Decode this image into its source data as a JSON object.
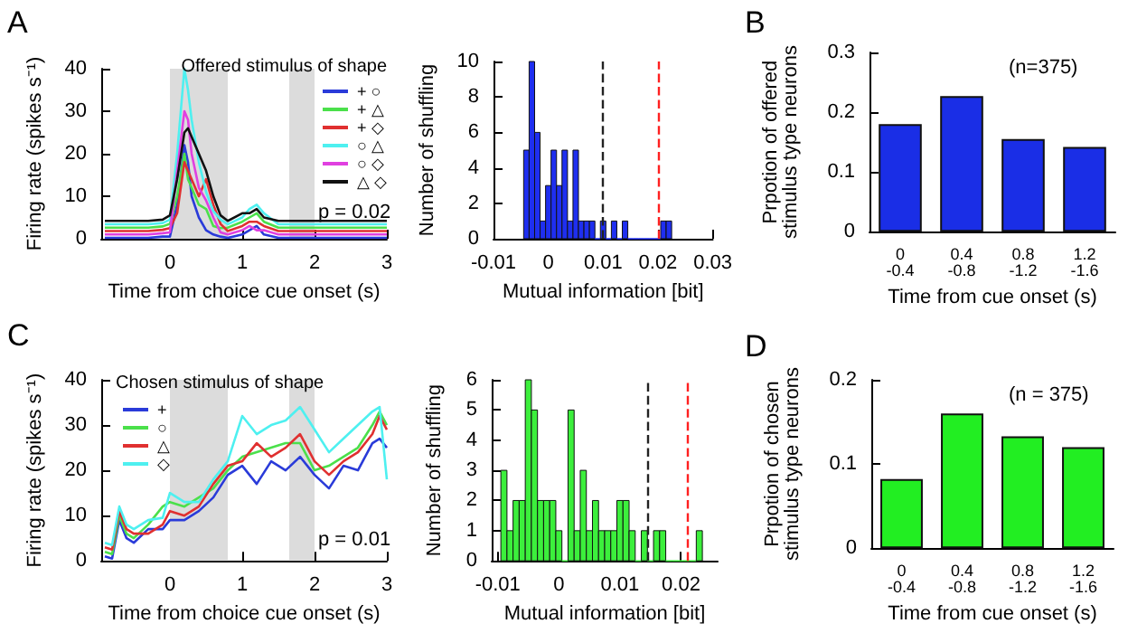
{
  "chart_data": [
    {
      "type": "line",
      "xlabel": "Time from choice cue onset (s)",
      "ylabel": "Firing rate (spikes s⁻¹)",
      "legend_title": "Offered stimulus of shape",
      "legend": "top right",
      "annotations": [
        "A",
        "p = 0.02"
      ],
      "xlim": [
        -0.95,
        3
      ],
      "xticks": [
        0,
        1,
        2,
        3
      ],
      "ylim": [
        0,
        40
      ],
      "yticks": [
        0,
        10,
        20,
        30,
        40
      ],
      "bands": [
        {
          "axis": "x",
          "from": 0,
          "to": 0.8,
          "color": "#dcdcdc"
        },
        {
          "axis": "x",
          "from": 1.65,
          "to": 2.0,
          "color": "#dcdcdc"
        }
      ],
      "x": [
        -0.9,
        -0.6,
        -0.3,
        -0.1,
        0,
        0.1,
        0.2,
        0.25,
        0.3,
        0.4,
        0.5,
        0.6,
        0.7,
        0.8,
        1.0,
        1.1,
        1.2,
        1.3,
        1.5,
        1.8,
        2.2,
        2.6,
        3.0
      ],
      "series": [
        {
          "name": "+ ○",
          "color": "#2a3bd9",
          "values": [
            0.2,
            0.2,
            0.2,
            0.5,
            0.5,
            8,
            22,
            18,
            10,
            5,
            2,
            1,
            0.5,
            0.2,
            1,
            2,
            3,
            1,
            0.2,
            0.2,
            0.2,
            0.2,
            0.2
          ]
        },
        {
          "name": "+ △",
          "color": "#4be04b",
          "values": [
            2.6,
            2.6,
            2.6,
            2.9,
            3.5,
            10,
            20,
            14,
            12,
            8,
            7,
            3,
            2.5,
            2.6,
            4,
            5,
            6,
            4,
            2.6,
            2.6,
            2.6,
            2.6,
            2.6
          ]
        },
        {
          "name": "+ ◇",
          "color": "#e03030",
          "values": [
            1.8,
            1.8,
            1.8,
            2.1,
            2.5,
            6,
            18,
            16,
            14,
            10,
            14,
            8,
            3.5,
            1.8,
            3,
            4,
            4,
            3,
            1.8,
            1.8,
            1.8,
            1.8,
            1.8
          ]
        },
        {
          "name": "○ △",
          "color": "#4ef0f0",
          "values": [
            3.4,
            3.4,
            3.4,
            3.7,
            4.5,
            20,
            40,
            35,
            28,
            18,
            11,
            6.5,
            4.5,
            3.4,
            5,
            7,
            8,
            6,
            3.4,
            3.4,
            3.4,
            3.4,
            3.4
          ]
        },
        {
          "name": "○ ◇",
          "color": "#e040e0",
          "values": [
            1,
            1,
            1,
            1.3,
            1.5,
            16,
            30,
            28,
            20,
            12,
            9,
            5,
            1.5,
            1,
            2,
            3,
            2,
            2,
            1,
            1,
            1,
            1,
            1
          ]
        },
        {
          "name": "△ ◇",
          "color": "#111111",
          "values": [
            4.2,
            4.2,
            4.2,
            4.5,
            5.5,
            14,
            25,
            26,
            24,
            20,
            16,
            10,
            5.5,
            4.2,
            6,
            6,
            7,
            5,
            4.2,
            4.2,
            4.2,
            4.2,
            4.2
          ]
        }
      ]
    },
    {
      "type": "histogram",
      "xlabel": "Mutual information [bit]",
      "ylabel": "Number of shuffling",
      "color": "#1f2ff0",
      "xlim": [
        -0.01,
        0.03
      ],
      "xticks": [
        -0.01,
        0,
        0.01,
        0.02,
        0.03
      ],
      "ylim": [
        0,
        10
      ],
      "yticks": [
        0,
        2,
        4,
        6,
        8,
        10
      ],
      "bins": [
        -0.0045,
        -0.0035,
        -0.0025,
        -0.0015,
        -0.0005,
        0.0005,
        0.0015,
        0.0025,
        0.0035,
        0.0045,
        0.0055,
        0.0065,
        0.0075,
        0.0085,
        0.0095,
        0.0105,
        0.0115,
        0.0125,
        0.0135,
        0.0145,
        0.0155,
        0.0165,
        0.0175,
        0.0185,
        0.0195,
        0.0205,
        0.0215,
        0.0225
      ],
      "values": [
        5,
        10,
        6,
        1,
        3,
        5,
        3,
        5,
        1,
        5,
        1,
        1,
        1,
        0,
        1,
        0,
        1,
        0,
        1,
        0,
        0,
        0,
        0,
        0,
        0,
        1,
        1
      ],
      "ref_lines": [
        {
          "axis": "x",
          "value": 0.01,
          "color": "#222222",
          "line_style": "dashed"
        },
        {
          "axis": "x",
          "value": 0.02,
          "color": "#ff2020",
          "line_style": "dashed"
        }
      ]
    },
    {
      "type": "bar",
      "xlabel": "Time from cue onset (s)",
      "ylabel": "Prpotion of offered\nstimulus type neurons",
      "annotations": [
        "B",
        "(n=375)"
      ],
      "color": "#1a2ee6",
      "categories": [
        "0\n-0.4",
        "0.4\n-0.8",
        "0.8\n-1.2",
        "1.2\n-1.6"
      ],
      "values": [
        0.18,
        0.227,
        0.155,
        0.142
      ],
      "ylim": [
        0,
        0.3
      ],
      "yticks": [
        0,
        0.1,
        0.2,
        0.3
      ]
    },
    {
      "type": "line",
      "xlabel": "Time from choice cue onset (s)",
      "ylabel": "Firing rate (spikes s⁻¹)",
      "legend_title": "Chosen stimulus of shape",
      "legend": "top left",
      "annotations": [
        "C",
        "p = 0.01"
      ],
      "xlim": [
        -0.95,
        3
      ],
      "xticks": [
        0,
        1,
        2,
        3
      ],
      "ylim": [
        0,
        40
      ],
      "yticks": [
        0,
        10,
        20,
        30,
        40
      ],
      "bands": [
        {
          "axis": "x",
          "from": 0,
          "to": 0.8,
          "color": "#dcdcdc"
        },
        {
          "axis": "x",
          "from": 1.65,
          "to": 2.0,
          "color": "#dcdcdc"
        }
      ],
      "x": [
        -0.9,
        -0.8,
        -0.7,
        -0.6,
        -0.5,
        -0.3,
        -0.1,
        0,
        0.2,
        0.4,
        0.6,
        0.8,
        1.0,
        1.2,
        1.4,
        1.6,
        1.8,
        2.0,
        2.2,
        2.4,
        2.6,
        2.8,
        2.9,
        3.0
      ],
      "series": [
        {
          "name": "+",
          "color": "#2a3bd9",
          "values": [
            1,
            0.5,
            9,
            5,
            4,
            7,
            7,
            9,
            9,
            11,
            14,
            19,
            21,
            17,
            22,
            20,
            23,
            19,
            16,
            21,
            20,
            26,
            27,
            25
          ]
        },
        {
          "name": "○",
          "color": "#4be04b",
          "values": [
            2,
            1.5,
            10,
            6,
            5,
            8,
            12,
            13,
            12,
            14,
            16,
            20,
            23,
            24,
            25,
            26,
            26,
            20,
            21,
            23,
            25,
            30,
            33,
            30
          ]
        },
        {
          "name": "△",
          "color": "#e03030",
          "values": [
            3,
            2.5,
            11,
            7,
            6,
            6,
            8,
            11,
            10,
            12,
            17,
            21,
            22,
            26,
            23,
            25,
            28,
            22,
            19,
            22,
            24,
            28,
            32,
            29
          ]
        },
        {
          "name": "◇",
          "color": "#4ef0f0",
          "values": [
            4,
            3.5,
            12,
            8,
            7,
            9,
            9.5,
            15,
            13,
            13,
            18,
            22,
            32,
            28,
            30,
            31,
            34,
            29,
            24,
            27,
            30,
            33,
            34,
            18
          ]
        }
      ]
    },
    {
      "type": "histogram",
      "xlabel": "Mutual information [bit]",
      "ylabel": "Number of shuffling",
      "color": "#3cef3c",
      "xlim": [
        -0.011,
        0.026
      ],
      "xticks": [
        -0.01,
        0,
        0.01,
        0.02
      ],
      "ylim": [
        0,
        6
      ],
      "yticks": [
        0,
        1,
        2,
        3,
        4,
        5,
        6
      ],
      "bins": [
        -0.0095,
        -0.0085,
        -0.0075,
        -0.0065,
        -0.0055,
        -0.0045,
        -0.0035,
        -0.0025,
        -0.0015,
        -0.0005,
        0.0005,
        0.0015,
        0.0025,
        0.0035,
        0.0045,
        0.0055,
        0.0065,
        0.0075,
        0.0085,
        0.0095,
        0.0105,
        0.0115,
        0.0125,
        0.0135,
        0.0145,
        0.0155,
        0.0165,
        0.0175,
        0.0185,
        0.0195,
        0.0205,
        0.0215,
        0.0225,
        0.0235
      ],
      "values": [
        3,
        1,
        2,
        2,
        6,
        5,
        2,
        2,
        2,
        1,
        0,
        5,
        1,
        3,
        1,
        2,
        1,
        1,
        1,
        2,
        2,
        1,
        0,
        1,
        0,
        1,
        1,
        0,
        0,
        0,
        0,
        0,
        1
      ],
      "ref_lines": [
        {
          "axis": "x",
          "value": 0.0145,
          "color": "#222222",
          "line_style": "dashed"
        },
        {
          "axis": "x",
          "value": 0.021,
          "color": "#ff2020",
          "line_style": "dashed"
        }
      ]
    },
    {
      "type": "bar",
      "xlabel": "Time from cue onset (s)",
      "ylabel": "Prpotion of chosen\nstimulus type neurons",
      "annotations": [
        "D",
        "(n = 375)"
      ],
      "color": "#22ee22",
      "categories": [
        "0\n-0.4",
        "0.4\n-0.8",
        "0.8\n-1.2",
        "1.2\n-1.6"
      ],
      "values": [
        0.082,
        0.16,
        0.133,
        0.12
      ],
      "ylim": [
        0,
        0.2
      ],
      "yticks": [
        0,
        0.1,
        0.2
      ]
    }
  ]
}
